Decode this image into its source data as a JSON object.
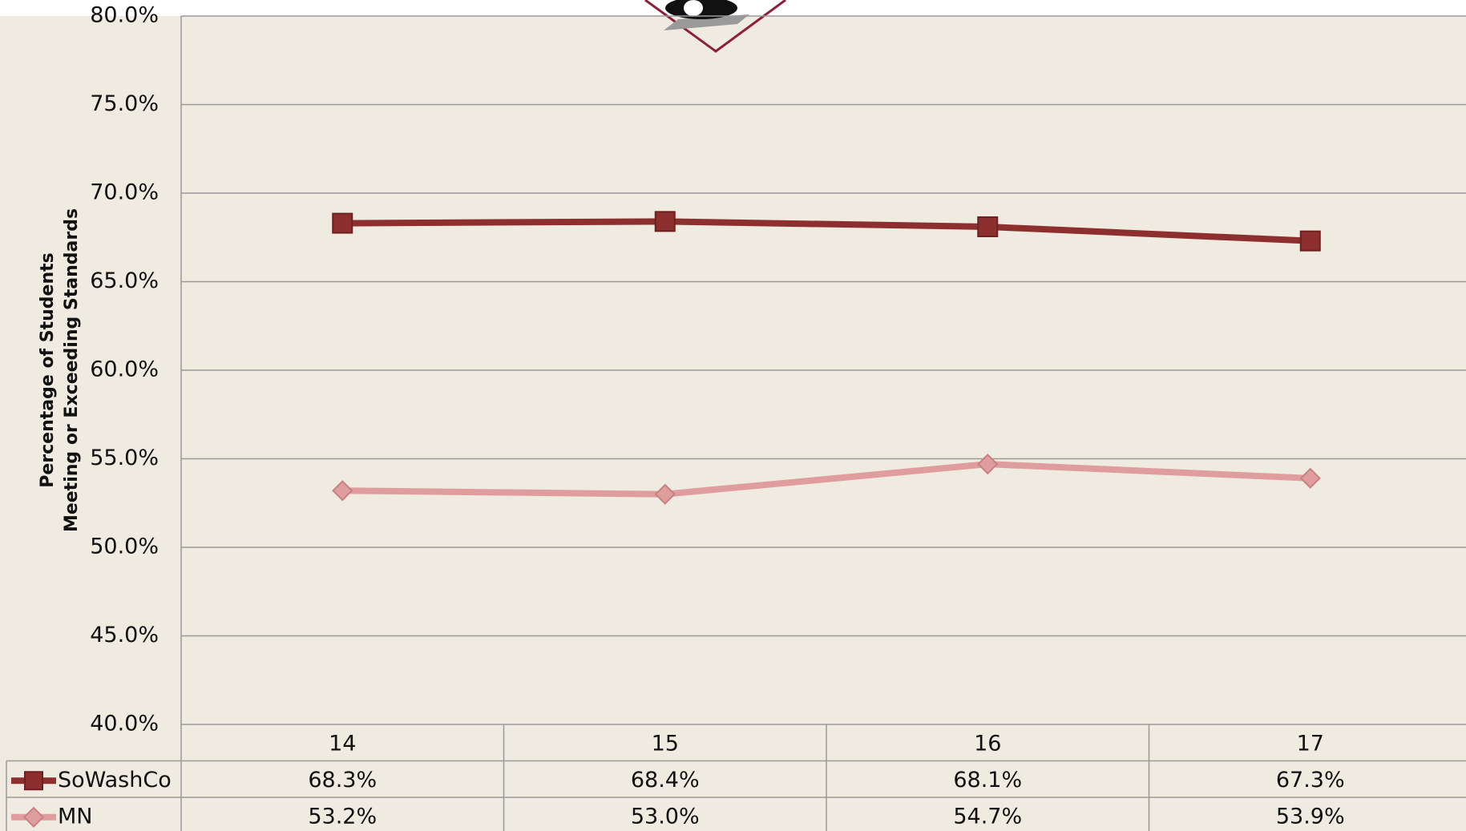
{
  "chart_data": {
    "type": "line",
    "ylabel": [
      "Percentage of Students",
      "Meeting or Exceeding Standards"
    ],
    "categories": [
      "14",
      "15",
      "16",
      "17"
    ],
    "series": [
      {
        "name": "SoWashCo",
        "color": "#8e2f2f",
        "marker": "square",
        "values": [
          68.3,
          68.4,
          68.1,
          67.3
        ],
        "value_labels": [
          "68.3%",
          "68.4%",
          "68.1%",
          "67.3%"
        ]
      },
      {
        "name": "MN",
        "color": "#df9d9d",
        "marker": "diamond",
        "values": [
          53.2,
          53.0,
          54.7,
          53.9
        ],
        "value_labels": [
          "53.2%",
          "53.0%",
          "54.7%",
          "53.9%"
        ]
      }
    ],
    "ylim": [
      40,
      80
    ],
    "yticks": [
      {
        "value": 40,
        "label": "40.0%"
      },
      {
        "value": 45,
        "label": "45.0%"
      },
      {
        "value": 50,
        "label": "50.0%"
      },
      {
        "value": 55,
        "label": "55.0%"
      },
      {
        "value": 60,
        "label": "60.0%"
      },
      {
        "value": 65,
        "label": "65.0%"
      },
      {
        "value": 70,
        "label": "70.0%"
      },
      {
        "value": 75,
        "label": "75.0%"
      },
      {
        "value": 80,
        "label": "80.0%"
      }
    ],
    "grid": true
  }
}
